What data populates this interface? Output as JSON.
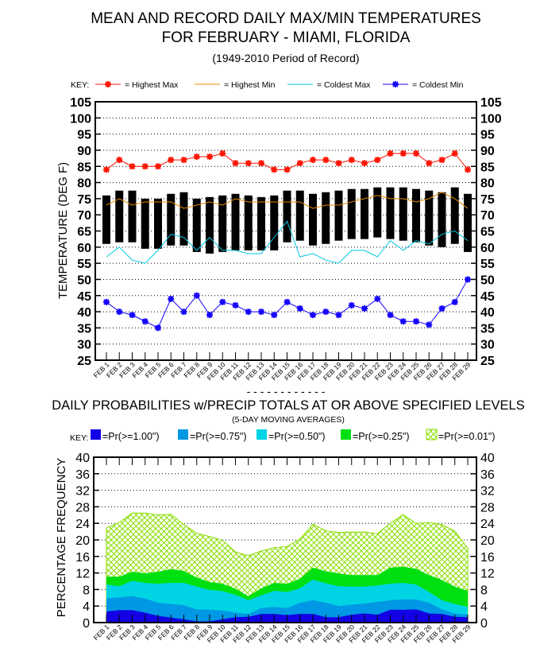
{
  "chart_data": [
    {
      "type": "line",
      "title": "MEAN AND RECORD DAILY MAX/MIN TEMPERATURES",
      "title_line2": "FOR FEBRUARY - MIAMI, FLORIDA",
      "subtitle": "(1949-2010 Period of Record)",
      "ylabel": "TEMPERATURE (DEG F)",
      "xlabel": "",
      "ylim": [
        25,
        105
      ],
      "yticks": [
        25,
        30,
        35,
        40,
        45,
        50,
        55,
        60,
        65,
        70,
        75,
        80,
        85,
        90,
        95,
        100,
        105
      ],
      "grid": true,
      "key_label": "KEY:",
      "categories": [
        "FEB 1",
        "FEB 2",
        "FEB 3",
        "FEB 4",
        "FEB 5",
        "FEB 6",
        "FEB 7",
        "FEB 8",
        "FEB 9",
        "FEB 10",
        "FEB 11",
        "FEB 12",
        "FEB 13",
        "FEB 14",
        "FEB 15",
        "FEB 16",
        "FEB 17",
        "FEB 18",
        "FEB 19",
        "FEB 20",
        "FEB 21",
        "FEB 22",
        "FEB 23",
        "FEB 24",
        "FEB 25",
        "FEB 26",
        "FEB 27",
        "FEB 28",
        "FEB 29"
      ],
      "mean_range_bars": {
        "color": "#000000",
        "mean_max": [
          76,
          77.5,
          77.5,
          75,
          75,
          76.5,
          77,
          75,
          75.5,
          76,
          76.5,
          76,
          75.5,
          76,
          77.5,
          77.5,
          76.5,
          77,
          77.5,
          78,
          78,
          78.5,
          78.5,
          78.5,
          78,
          77.5,
          77,
          78.5,
          76.5
        ],
        "mean_min": [
          61,
          61.5,
          61.5,
          59.5,
          59.5,
          60.5,
          60.5,
          58.5,
          58,
          58.5,
          59,
          59,
          59,
          59,
          61.5,
          62,
          60.5,
          61,
          62,
          62.5,
          62.5,
          63,
          62.5,
          62,
          61.5,
          60.5,
          60,
          61,
          58.5
        ]
      },
      "series": [
        {
          "name": "= Highest Max",
          "color": "#ff1400",
          "marker": "star",
          "values": [
            84,
            87,
            85,
            85,
            85,
            87,
            87,
            88,
            88,
            89,
            86,
            86,
            86,
            84,
            84,
            86,
            87,
            87,
            86,
            87,
            86,
            87,
            89,
            89,
            89,
            86,
            87,
            89,
            84
          ]
        },
        {
          "name": "= Highest Min",
          "color": "#e88a00",
          "marker": "none",
          "values": [
            73,
            75,
            73,
            74,
            74,
            74,
            72,
            73,
            74,
            73,
            75,
            74,
            74,
            74,
            74,
            74,
            72,
            73,
            73,
            74,
            75,
            76,
            75,
            75,
            74,
            75,
            77,
            75,
            72
          ]
        },
        {
          "name": "= Coldest Max",
          "color": "#00c8e0",
          "marker": "none",
          "values": [
            57,
            60,
            56,
            55,
            59,
            64,
            63,
            59,
            63,
            59,
            59,
            58,
            58,
            63,
            68,
            57,
            58,
            56,
            55,
            59,
            59,
            57,
            62,
            59,
            62,
            61,
            64,
            65,
            62
          ]
        },
        {
          "name": "= Coldest Min",
          "color": "#1400ff",
          "marker": "star",
          "values": [
            43,
            40,
            39,
            37,
            35,
            44,
            40,
            45,
            39,
            43,
            42,
            40,
            40,
            39,
            43,
            41,
            39,
            40,
            39,
            42,
            41,
            44,
            39,
            37,
            37,
            36,
            41,
            43,
            50
          ]
        }
      ]
    },
    {
      "type": "area",
      "separator": "- - - - - - - - - - - -",
      "title": "DAILY PROBABILITIES w/PRECIP TOTALS AT OR ABOVE SPECIFIED LEVELS",
      "subtitle": "(5-DAY MOVING AVERAGES)",
      "ylabel": "PERCENTAGE FREQUENCY",
      "xlabel": "",
      "ylim": [
        0,
        40
      ],
      "yticks": [
        0,
        4,
        8,
        12,
        16,
        20,
        24,
        28,
        32,
        36,
        40
      ],
      "grid": true,
      "key_label": "KEY:",
      "categories": [
        "FEB 1",
        "FEB 2",
        "FEB 3",
        "FEB 4",
        "FEB 5",
        "FEB 6",
        "FEB 7",
        "FEB 8",
        "FEB 9",
        "FEB 10",
        "FEB 11",
        "FEB 12",
        "FEB 13",
        "FEB 14",
        "FEB 15",
        "FEB 16",
        "FEB 17",
        "FEB 18",
        "FEB 19",
        "FEB 20",
        "FEB 21",
        "FEB 22",
        "FEB 23",
        "FEB 24",
        "FEB 25",
        "FEB 26",
        "FEB 27",
        "FEB 28",
        "FEB 29"
      ],
      "series": [
        {
          "name": "=Pr(>=0.01\")",
          "color": "#88dd00",
          "fill": "hatch",
          "values": [
            22.9,
            24.2,
            26.5,
            26.5,
            26,
            26.2,
            23.7,
            21.6,
            20.8,
            19.9,
            17.1,
            16.2,
            17.3,
            18.1,
            18.4,
            20.2,
            23.8,
            22.2,
            21.8,
            21.9,
            21.9,
            21.5,
            24,
            26.1,
            24,
            24.2,
            23.7,
            22.1,
            18
          ]
        },
        {
          "name": "=Pr(>=0.25\")",
          "color": "#00e010",
          "fill": "solid",
          "values": [
            11.1,
            11.1,
            12.3,
            11.9,
            12.3,
            12.9,
            12.5,
            10.9,
            9.8,
            9.4,
            8.2,
            6.4,
            8.3,
            9.6,
            9.4,
            10.6,
            13.3,
            12.4,
            11.9,
            11.5,
            11.5,
            11.5,
            13.3,
            13.5,
            13,
            11.5,
            10.3,
            8.7,
            7.7
          ]
        },
        {
          "name": "=Pr(>=0.50\")",
          "color": "#00d4e4",
          "fill": "solid",
          "values": [
            9.2,
            8.8,
            10.1,
            9.6,
            9.4,
            9.6,
            9.6,
            8.7,
            7.9,
            7.6,
            6.7,
            5.4,
            6.6,
            7.7,
            7.4,
            8.3,
            10.4,
            9.5,
            8.8,
            8.7,
            8.7,
            9,
            9.4,
            9.6,
            9.2,
            7.4,
            5.4,
            4.5,
            3.8
          ]
        },
        {
          "name": "=Pr(>=0.75\")",
          "color": "#0098e4",
          "fill": "solid",
          "values": [
            5.9,
            6.1,
            6.4,
            5.8,
            4.8,
            4.5,
            4.2,
            3.2,
            3.1,
            2.9,
            2.4,
            2.1,
            3.5,
            3.8,
            3.5,
            4.8,
            5.4,
            4.8,
            4,
            4.3,
            4.6,
            5,
            5.4,
            5.6,
            5.6,
            4.8,
            3.2,
            2.2,
            1.9
          ]
        },
        {
          "name": "=Pr(>=1.00\")",
          "color": "#1400e4",
          "fill": "solid",
          "values": [
            2.7,
            3,
            3,
            2.4,
            1.6,
            1.2,
            0.8,
            0.3,
            0.3,
            0.8,
            1.3,
            1.4,
            2.1,
            2.1,
            1.8,
            2.1,
            2.1,
            1.3,
            1.3,
            1.9,
            2.2,
            1.9,
            3.1,
            3.1,
            3.2,
            2.2,
            2.1,
            1.4,
            1.3
          ]
        }
      ]
    }
  ]
}
